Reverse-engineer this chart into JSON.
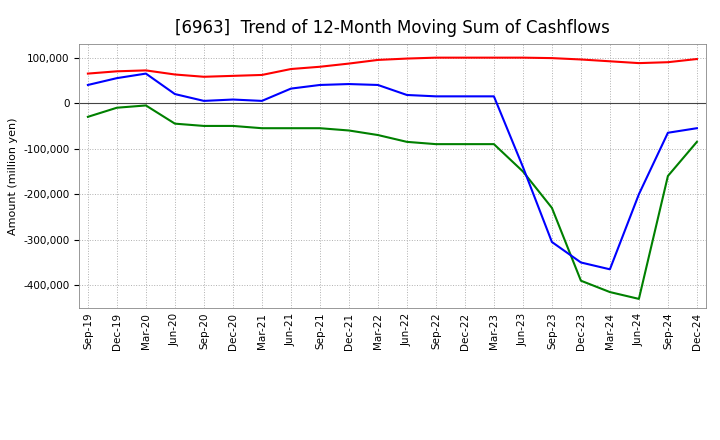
{
  "title": "[6963]  Trend of 12-Month Moving Sum of Cashflows",
  "ylabel": "Amount (million yen)",
  "xlabels": [
    "Sep-19",
    "Dec-19",
    "Mar-20",
    "Jun-20",
    "Sep-20",
    "Dec-20",
    "Mar-21",
    "Jun-21",
    "Sep-21",
    "Dec-21",
    "Mar-22",
    "Jun-22",
    "Sep-22",
    "Dec-22",
    "Mar-23",
    "Jun-23",
    "Sep-23",
    "Dec-23",
    "Mar-24",
    "Jun-24",
    "Sep-24",
    "Dec-24"
  ],
  "operating_cashflow": [
    65000,
    70000,
    72000,
    63000,
    58000,
    60000,
    62000,
    75000,
    80000,
    87000,
    95000,
    98000,
    100000,
    100000,
    100000,
    100000,
    99000,
    96000,
    92000,
    88000,
    90000,
    97000
  ],
  "investing_cashflow": [
    -30000,
    -10000,
    -5000,
    -45000,
    -50000,
    -50000,
    -55000,
    -55000,
    -55000,
    -60000,
    -70000,
    -85000,
    -90000,
    -90000,
    -90000,
    -150000,
    -230000,
    -390000,
    -415000,
    -430000,
    -160000,
    -85000
  ],
  "free_cashflow": [
    40000,
    55000,
    65000,
    20000,
    5000,
    8000,
    5000,
    32000,
    40000,
    42000,
    40000,
    18000,
    15000,
    15000,
    15000,
    -140000,
    -305000,
    -350000,
    -365000,
    -200000,
    -65000,
    -55000
  ],
  "operating_color": "#ff0000",
  "investing_color": "#008000",
  "free_color": "#0000ff",
  "ylim": [
    -450000,
    130000
  ],
  "yticks": [
    100000,
    0,
    -100000,
    -200000,
    -300000,
    -400000
  ],
  "background_color": "#ffffff",
  "grid_color": "#b0b0b0",
  "title_fontsize": 12,
  "legend_fontsize": 9,
  "axis_fontsize": 8,
  "tick_fontsize": 7.5
}
